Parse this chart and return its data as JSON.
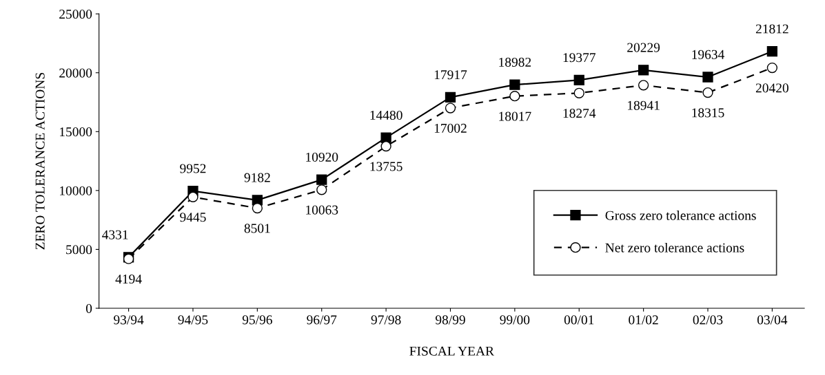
{
  "chart_data": {
    "type": "line",
    "xlabel": "FISCAL YEAR",
    "ylabel": "ZERO TOLERANCE ACTIONS",
    "categories": [
      "93/94",
      "94/95",
      "95/96",
      "96/97",
      "97/98",
      "98/99",
      "99/00",
      "00/01",
      "01/02",
      "02/03",
      "03/04"
    ],
    "series": [
      {
        "name": "Gross zero tolerance actions",
        "color": "#000000",
        "marker": "square",
        "line_style": "solid",
        "values": [
          4331,
          9952,
          9182,
          10920,
          14480,
          17917,
          18982,
          19377,
          20229,
          19634,
          21812
        ]
      },
      {
        "name": "Net zero tolerance actions",
        "color": "#000000",
        "marker": "circle",
        "line_style": "dashed",
        "values": [
          4194,
          9445,
          8501,
          10063,
          13755,
          17002,
          18017,
          18274,
          18941,
          18315,
          20420
        ]
      }
    ],
    "ylim": [
      0,
      25000
    ],
    "yticks": [
      0,
      5000,
      10000,
      15000,
      20000,
      25000
    ],
    "data_labels": true,
    "grid": false,
    "legend": "bottom right"
  }
}
